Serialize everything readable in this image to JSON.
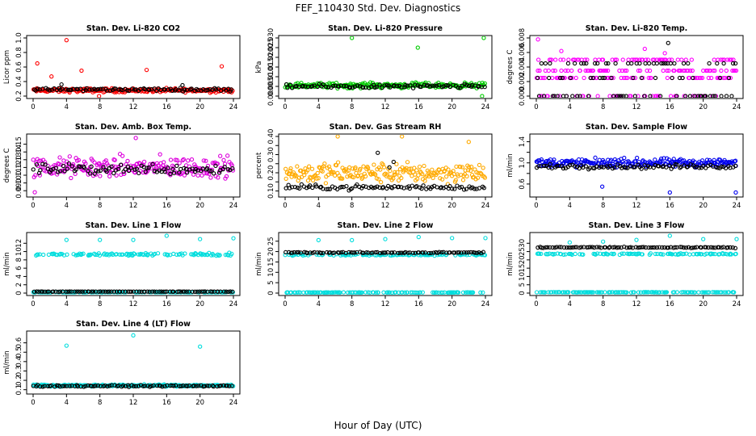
{
  "figure": {
    "title": "FEF_110430  Std. Dev. Diagnostics",
    "xlabel": "Hour of Day (UTC)"
  },
  "chart_data": [
    {
      "type": "scatter",
      "title": "Stan. Dev. Li-820 CO2",
      "ylabel": "Licor ppm",
      "xlim": [
        0,
        24
      ],
      "xticks": [
        0,
        4,
        8,
        12,
        16,
        20,
        24
      ],
      "ylim": [
        0.2,
        1.0
      ],
      "yticks": [
        0.2,
        0.4,
        0.6,
        0.8,
        1.0
      ],
      "ytick_labels": [
        "0.2",
        "0.4",
        "0.6",
        "0.8",
        "1.0"
      ],
      "series": [
        {
          "color": "#ff0000",
          "base": 0.28,
          "spread": 0.04,
          "outliers": [
            [
              0.5,
              0.65
            ],
            [
              2.2,
              0.47
            ],
            [
              4.0,
              0.97
            ],
            [
              5.8,
              0.55
            ],
            [
              7.9,
              0.2
            ],
            [
              13.6,
              0.56
            ],
            [
              22.6,
              0.61
            ],
            [
              23.4,
              0.26
            ]
          ]
        },
        {
          "color": "#000000",
          "base": 0.29,
          "spread": 0.03,
          "outliers": [
            [
              3.4,
              0.36
            ],
            [
              17.9,
              0.35
            ]
          ]
        }
      ]
    },
    {
      "type": "scatter",
      "title": "Stan. Dev. Li-820 Pressure",
      "ylabel": "kPa",
      "xlim": [
        0,
        24
      ],
      "xticks": [
        0,
        4,
        8,
        12,
        16,
        20,
        24
      ],
      "ylim": [
        0,
        0.03
      ],
      "yticks": [
        0,
        0.005,
        0.01,
        0.015,
        0.02,
        0.025,
        0.03
      ],
      "ytick_labels": [
        "0.000",
        "0.005",
        "0.010",
        "0.015",
        "0.020",
        "0.025",
        "0.030"
      ],
      "series": [
        {
          "color": "#00cc00",
          "base": 0.0055,
          "spread": 0.002,
          "outliers": [
            [
              8.0,
              0.03
            ],
            [
              15.9,
              0.025
            ],
            [
              23.8,
              0.03
            ],
            [
              23.6,
              0.0
            ]
          ]
        },
        {
          "color": "#000000",
          "base": 0.005,
          "spread": 0.0015,
          "outliers": []
        }
      ]
    },
    {
      "type": "scatter",
      "title": "Stan. Dev. Li-820 Temp.",
      "ylabel": "degrees C",
      "xlim": [
        0,
        24
      ],
      "xticks": [
        0,
        4,
        8,
        12,
        16,
        20,
        24
      ],
      "ylim": [
        0,
        0.008
      ],
      "yticks": [
        0,
        0.002,
        0.004,
        0.006,
        0.008
      ],
      "ytick_labels": [
        "0.000",
        "0.002",
        "0.004",
        "0.006",
        "0.008"
      ],
      "series": [
        {
          "color": "#ff00ff",
          "levels": [
            0.0,
            0.0025,
            0.0035,
            0.005
          ],
          "outliers": [
            [
              0.2,
              0.0078
            ],
            [
              3.0,
              0.0062
            ],
            [
              13.0,
              0.0065
            ],
            [
              15.4,
              0.0059
            ]
          ]
        },
        {
          "color": "#000000",
          "levels": [
            0.0,
            0.0025,
            0.0045
          ],
          "outliers": [
            [
              15.8,
              0.0073
            ]
          ]
        }
      ]
    },
    {
      "type": "scatter",
      "title": "Stan. Dev. Amb. Box Temp.",
      "ylabel": "degrees C",
      "xlim": [
        0,
        24
      ],
      "xticks": [
        0,
        4,
        8,
        12,
        16,
        20,
        24
      ],
      "ylim": [
        0.085,
        0.16
      ],
      "yticks": [
        0.09,
        0.1,
        0.11,
        0.12,
        0.13,
        0.14,
        0.15
      ],
      "ytick_labels": [
        "0.09",
        "0.10",
        "0.11",
        "0.12",
        "0.13",
        "0.14",
        "0.15"
      ],
      "series": [
        {
          "color": "#dd00dd",
          "base": 0.12,
          "spread": 0.02,
          "outliers": [
            [
              12.3,
              0.158
            ],
            [
              0.2,
              0.088
            ]
          ]
        },
        {
          "color": "#000000",
          "base": 0.118,
          "spread": 0.01,
          "outliers": []
        }
      ]
    },
    {
      "type": "scatter",
      "title": "Stan. Dev. Gas Stream RH",
      "ylabel": "percent",
      "xlim": [
        0,
        24
      ],
      "xticks": [
        0,
        4,
        8,
        12,
        16,
        20,
        24
      ],
      "ylim": [
        0.08,
        0.4
      ],
      "yticks": [
        0.1,
        0.15,
        0.2,
        0.25,
        0.3,
        0.35,
        0.4
      ],
      "ytick_labels": [
        "0.10",
        "",
        "0.20",
        "",
        "0.30",
        "",
        "0.40"
      ],
      "series": [
        {
          "color": "#ffaa00",
          "base": 0.2,
          "spread": 0.08,
          "outliers": [
            [
              6.3,
              0.4
            ],
            [
              14.0,
              0.4
            ],
            [
              22.0,
              0.37
            ]
          ]
        },
        {
          "color": "#000000",
          "base": 0.12,
          "spread": 0.02,
          "outliers": [
            [
              11.1,
              0.31
            ],
            [
              12.5,
              0.23
            ],
            [
              13.0,
              0.26
            ]
          ]
        }
      ]
    },
    {
      "type": "scatter",
      "title": "Stan. Dev. Sample Flow",
      "ylabel": "ml/min",
      "xlim": [
        0,
        24
      ],
      "xticks": [
        0,
        4,
        8,
        12,
        16,
        20,
        24
      ],
      "ylim": [
        0.4,
        1.5
      ],
      "yticks": [
        0.6,
        0.8,
        1.0,
        1.2,
        1.4
      ],
      "ytick_labels": [
        "0.6",
        "",
        "1.0",
        "",
        "1.4"
      ],
      "series": [
        {
          "color": "#0000ee",
          "base": 1.0,
          "spread": 0.12,
          "outliers": [
            [
              7.9,
              0.55
            ],
            [
              16.0,
              0.44
            ],
            [
              23.9,
              0.44
            ]
          ]
        },
        {
          "color": "#000000",
          "base": 0.93,
          "spread": 0.06,
          "outliers": []
        }
      ]
    },
    {
      "type": "scatter",
      "title": "Stan. Dev. Line 1 Flow",
      "ylabel": "ml/min",
      "xlim": [
        0,
        24
      ],
      "xticks": [
        0,
        4,
        8,
        12,
        16,
        20,
        24
      ],
      "ylim": [
        0,
        14
      ],
      "yticks": [
        0,
        2,
        4,
        6,
        8,
        10,
        12
      ],
      "ytick_labels": [
        "0",
        "2",
        "4",
        "6",
        "8",
        "10",
        "12"
      ],
      "series": [
        {
          "color": "#00dddd",
          "base": 9.3,
          "spread": 0.5,
          "outliers": [
            [
              4.0,
              12.8
            ],
            [
              8.0,
              12.8
            ],
            [
              12.0,
              12.8
            ],
            [
              16.0,
              13.8
            ],
            [
              20.0,
              13.0
            ],
            [
              24.0,
              13.2
            ]
          ],
          "base2": 0.2
        },
        {
          "color": "#000000",
          "base": 0.35,
          "spread": 0.05,
          "outliers": []
        }
      ]
    },
    {
      "type": "scatter",
      "title": "Stan. Dev. Line 2 Flow",
      "ylabel": "ml/min",
      "xlim": [
        0,
        24
      ],
      "xticks": [
        0,
        4,
        8,
        12,
        16,
        20,
        24
      ],
      "ylim": [
        0,
        28
      ],
      "yticks": [
        0,
        5,
        10,
        15,
        20,
        25
      ],
      "ytick_labels": [
        "0",
        "5",
        "10",
        "15",
        "20",
        "25"
      ],
      "series": [
        {
          "color": "#00dddd",
          "base": 18.5,
          "spread": 0.6,
          "outliers": [
            [
              4.0,
              25.5
            ],
            [
              8.0,
              25.5
            ],
            [
              12.0,
              26.0
            ],
            [
              16.0,
              27.0
            ],
            [
              20.0,
              26.5
            ],
            [
              24.0,
              26.5
            ]
          ],
          "base2": 0.3
        },
        {
          "color": "#000000",
          "base": 19.5,
          "spread": 0.4,
          "outliers": []
        }
      ]
    },
    {
      "type": "scatter",
      "title": "Stan. Dev. Line 3 Flow",
      "ylabel": "ml/min",
      "xlim": [
        0,
        24
      ],
      "xticks": [
        0,
        4,
        8,
        12,
        16,
        20,
        24
      ],
      "ylim": [
        0,
        35
      ],
      "yticks": [
        0,
        5,
        10,
        15,
        20,
        25,
        30
      ],
      "ytick_labels": [
        "0",
        "5",
        "10",
        "15",
        "20",
        "25",
        "30"
      ],
      "series": [
        {
          "color": "#00dddd",
          "base": 23.5,
          "spread": 0.6,
          "outliers": [
            [
              4.0,
              30.5
            ],
            [
              8.0,
              31.0
            ],
            [
              12.0,
              32.0
            ],
            [
              16.0,
              34.5
            ],
            [
              20.0,
              32.5
            ],
            [
              24.0,
              32.5
            ]
          ],
          "base2": 0.5
        },
        {
          "color": "#000000",
          "base": 27.5,
          "spread": 0.5,
          "outliers": []
        }
      ]
    },
    {
      "type": "scatter",
      "title": "Stan. Dev. Line 4 (LT) Flow",
      "ylabel": "ml/min",
      "xlim": [
        0,
        24
      ],
      "xticks": [
        0,
        4,
        8,
        12,
        16,
        20,
        24
      ],
      "ylim": [
        0.08,
        0.7
      ],
      "yticks": [
        0.1,
        0.2,
        0.3,
        0.4,
        0.5,
        0.6
      ],
      "ytick_labels": [
        "0.1",
        "0.2",
        "0.3",
        "0.4",
        "0.5",
        "0.6"
      ],
      "series": [
        {
          "color": "#00dddd",
          "base": 0.145,
          "spread": 0.015,
          "outliers": [
            [
              4.0,
              0.57
            ],
            [
              12.0,
              0.68
            ],
            [
              20.0,
              0.56
            ]
          ]
        },
        {
          "color": "#000000",
          "base": 0.14,
          "spread": 0.012,
          "outliers": []
        }
      ]
    }
  ]
}
